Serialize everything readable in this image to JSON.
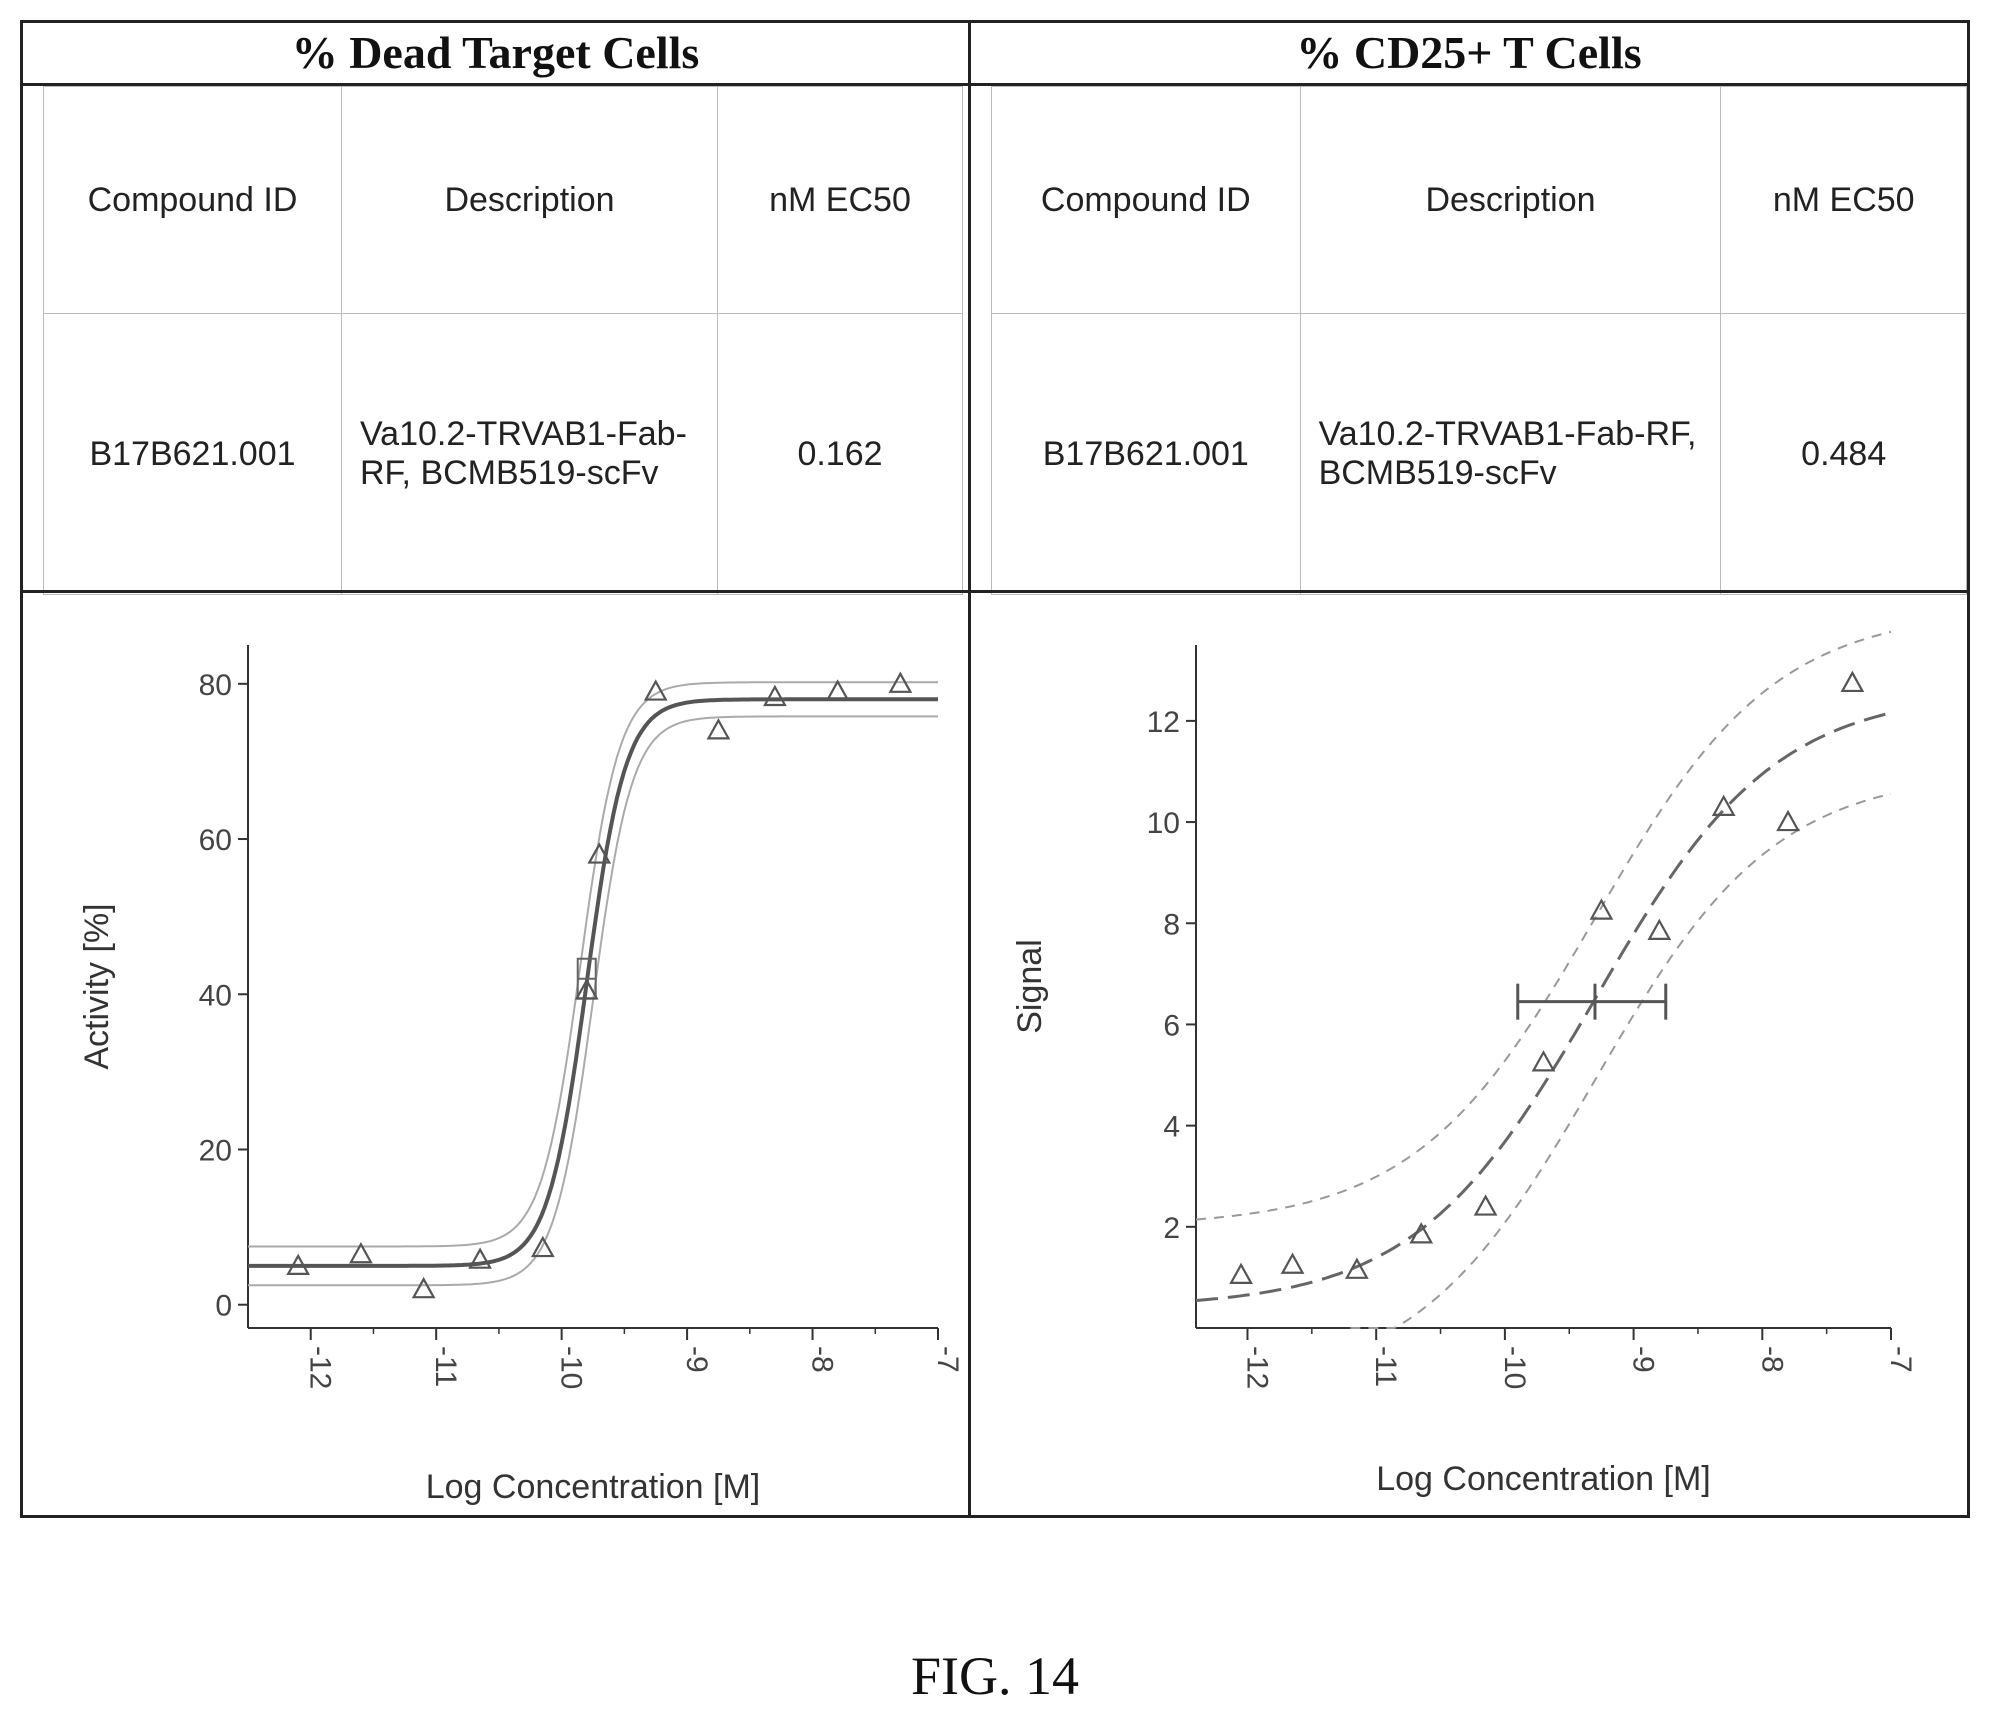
{
  "figure_label": "FIG. 14",
  "panels": [
    {
      "title": "% Dead Target Cells",
      "table": {
        "headers": [
          "Compound ID",
          "Description",
          "nM EC50"
        ],
        "row": [
          "B17B621.001",
          "Va10.2-TRVAB1-Fab-RF, BCMB519-scFv",
          "0.162"
        ]
      }
    },
    {
      "title": "% CD25+ T Cells",
      "table": {
        "headers": [
          "Compound ID",
          "Description",
          "nM EC50"
        ],
        "row": [
          "B17B621.001",
          "Va10.2-TRVAB1-Fab-RF, BCMB519-scFv",
          "0.484"
        ]
      }
    }
  ],
  "chart_data": [
    {
      "type": "scatter",
      "title": "",
      "xlabel": "Log Concentration [M]",
      "ylabel": "Activity [%]",
      "xlim": [
        -12.5,
        -7
      ],
      "ylim": [
        -3,
        85
      ],
      "xticks": [
        -12,
        -11,
        -10,
        -9,
        -8,
        -7
      ],
      "yticks": [
        0,
        20,
        40,
        60,
        80
      ],
      "grid": false,
      "points": [
        {
          "x": -12.1,
          "y": 5
        },
        {
          "x": -11.6,
          "y": 6.5
        },
        {
          "x": -11.1,
          "y": 2
        },
        {
          "x": -10.65,
          "y": 5.8
        },
        {
          "x": -10.15,
          "y": 7.3
        },
        {
          "x": -9.8,
          "y": 40.5
        },
        {
          "x": -9.7,
          "y": 58
        },
        {
          "x": -9.25,
          "y": 79
        },
        {
          "x": -8.75,
          "y": 74
        },
        {
          "x": -8.3,
          "y": 78.3
        },
        {
          "x": -7.8,
          "y": 79
        },
        {
          "x": -7.3,
          "y": 80
        }
      ],
      "ec50_marker": {
        "x": -9.8,
        "y": 42
      },
      "fit": {
        "bottom": 5,
        "top": 78,
        "logEC50": -9.8,
        "hill": 2.8
      },
      "confidence_band": {
        "bottom": [
          2.5,
          75.8
        ],
        "top": [
          7.5,
          80.2
        ]
      }
    },
    {
      "type": "scatter",
      "title": "",
      "xlabel": "Log Concentration [M]",
      "ylabel": "Signal",
      "xlim": [
        -12.4,
        -7
      ],
      "ylim": [
        0,
        13.5
      ],
      "xticks": [
        -12,
        -11,
        -10,
        -9,
        -8,
        -7
      ],
      "yticks": [
        2,
        4,
        6,
        8,
        10,
        12
      ],
      "grid": false,
      "points": [
        {
          "x": -12.05,
          "y": 1.05
        },
        {
          "x": -11.65,
          "y": 1.25
        },
        {
          "x": -11.15,
          "y": 1.15
        },
        {
          "x": -10.65,
          "y": 1.85
        },
        {
          "x": -10.15,
          "y": 2.4
        },
        {
          "x": -9.7,
          "y": 5.25
        },
        {
          "x": -9.25,
          "y": 8.25
        },
        {
          "x": -8.8,
          "y": 7.85
        },
        {
          "x": -8.3,
          "y": 10.3
        },
        {
          "x": -7.8,
          "y": 10
        },
        {
          "x": -7.3,
          "y": 12.75
        }
      ],
      "ec50_errorbar": {
        "x": -9.3,
        "y": 6.45,
        "xmin": -9.9,
        "xmax": -8.75
      },
      "fit": {
        "bottom": 0.4,
        "top": 12.6,
        "logEC50": -9.3,
        "hill": 0.62
      },
      "confidence_band": {
        "offset": 1.6
      }
    }
  ]
}
